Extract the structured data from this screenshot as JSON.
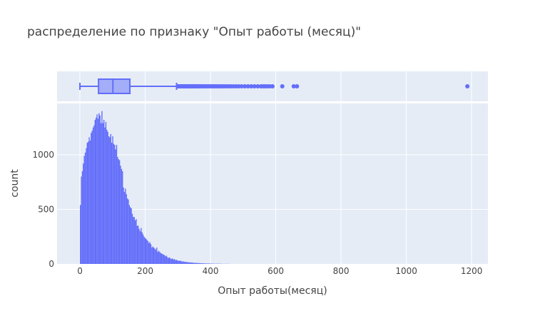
{
  "chart_data": {
    "type": "bar",
    "title": "распределение по признаку \"Опыт работы (месяц)\"",
    "xlabel": "Опыт работы(месяц)",
    "ylabel": "count",
    "x_range": [
      -70,
      1250
    ],
    "y_range": [
      0,
      1470
    ],
    "x_ticks": [
      {
        "value": 0,
        "label": "0"
      },
      {
        "value": 200,
        "label": "200"
      },
      {
        "value": 400,
        "label": "400"
      },
      {
        "value": 600,
        "label": "600"
      },
      {
        "value": 800,
        "label": "800"
      },
      {
        "value": 1000,
        "label": "1000"
      },
      {
        "value": 1200,
        "label": "1200"
      }
    ],
    "y_ticks": [
      {
        "value": 0,
        "label": "0"
      },
      {
        "value": 500,
        "label": "500"
      },
      {
        "value": 1000,
        "label": "1000"
      }
    ],
    "grid": true,
    "color": "#636efa",
    "background": "#e5ecf6",
    "histogram": {
      "bin_start": 0,
      "bin_width": 3,
      "counts": [
        540,
        800,
        850,
        920,
        990,
        1020,
        1060,
        1110,
        1120,
        1160,
        1130,
        1200,
        1220,
        1250,
        1270,
        1320,
        1340,
        1370,
        1330,
        1380,
        1360,
        1290,
        1400,
        1290,
        1320,
        1250,
        1300,
        1230,
        1210,
        1170,
        1160,
        1190,
        1110,
        1170,
        1100,
        1090,
        1050,
        1090,
        980,
        960,
        950,
        900,
        870,
        850,
        700,
        660,
        690,
        640,
        600,
        590,
        540,
        520,
        510,
        460,
        430,
        430,
        400,
        410,
        350,
        350,
        320,
        300,
        330,
        290,
        270,
        250,
        240,
        230,
        220,
        210,
        190,
        200,
        180,
        150,
        160,
        150,
        140,
        130,
        150,
        110,
        120,
        110,
        100,
        95,
        90,
        85,
        80,
        70,
        75,
        60,
        55,
        60,
        50,
        45,
        50,
        40,
        45,
        35,
        38,
        32,
        30,
        28,
        30,
        25,
        22,
        24,
        20,
        18,
        20,
        16,
        15,
        14,
        15,
        12,
        13,
        11,
        10,
        10,
        9,
        9,
        8,
        8,
        7,
        7,
        6,
        6,
        5,
        5,
        5,
        4,
        4,
        4,
        4,
        3,
        3,
        3,
        3,
        2,
        2,
        2,
        2,
        2,
        2,
        2,
        1,
        1,
        1,
        1,
        1,
        1,
        1,
        1,
        1
      ]
    },
    "boxplot": {
      "min": 0,
      "q1": 57,
      "median": 101,
      "q3": 153,
      "upper_fence": 296,
      "outliers": [
        300,
        303,
        306,
        309,
        312,
        315,
        318,
        321,
        324,
        327,
        330,
        333,
        336,
        339,
        342,
        345,
        348,
        351,
        354,
        357,
        360,
        364,
        368,
        372,
        376,
        380,
        385,
        390,
        395,
        400,
        405,
        410,
        415,
        420,
        425,
        430,
        436,
        442,
        448,
        455,
        462,
        470,
        478,
        486,
        495,
        505,
        515,
        525,
        535,
        545,
        555,
        562,
        568,
        575,
        582,
        590,
        620,
        655,
        665,
        1187
      ]
    }
  }
}
